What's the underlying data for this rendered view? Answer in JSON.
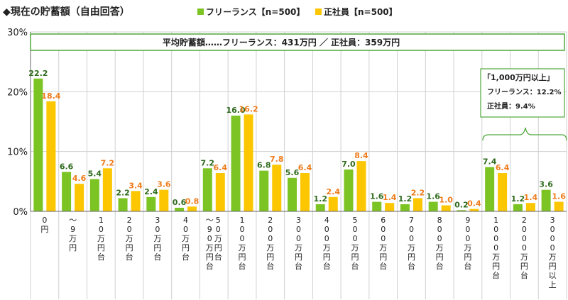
{
  "chart_data": {
    "type": "bar",
    "title": "◆現在の貯蓄額（自由回答）",
    "legend_position": "top",
    "series": [
      {
        "name": "フリーランス【n=500】",
        "color": "#7cc424",
        "label_color": "#2e6b1e",
        "values": [
          22.2,
          6.6,
          5.4,
          2.2,
          2.4,
          0.6,
          7.2,
          16.0,
          6.8,
          5.6,
          1.2,
          7.0,
          1.6,
          1.2,
          1.6,
          0.2,
          7.4,
          1.2,
          3.6
        ]
      },
      {
        "name": "正社員【n=500】",
        "color": "#fcc600",
        "label_color": "#ee7b1a",
        "values": [
          18.4,
          4.6,
          7.2,
          3.4,
          3.6,
          0.8,
          6.4,
          16.2,
          7.8,
          6.4,
          2.4,
          8.4,
          1.4,
          2.2,
          1.0,
          0.4,
          6.4,
          1.4,
          1.6
        ]
      }
    ],
    "categories": [
      [
        "0",
        "円"
      ],
      [
        "〜",
        "9",
        "万",
        "円"
      ],
      [
        "1",
        "0",
        "万",
        "円",
        "台"
      ],
      [
        "2",
        "0",
        "万",
        "円",
        "台"
      ],
      [
        "3",
        "0",
        "万",
        "円",
        "台"
      ],
      [
        "4",
        "0",
        "万",
        "円",
        "台"
      ],
      [
        "〜",
        "9",
        "0",
        "万",
        "円",
        "台",
        "5",
        "0",
        "万",
        "円",
        "台"
      ],
      [
        "1",
        "0",
        "0",
        "万",
        "円",
        "台"
      ],
      [
        "2",
        "0",
        "0",
        "万",
        "円",
        "台"
      ],
      [
        "3",
        "0",
        "0",
        "万",
        "円",
        "台"
      ],
      [
        "4",
        "0",
        "0",
        "万",
        "円",
        "台"
      ],
      [
        "5",
        "0",
        "0",
        "万",
        "円",
        "台"
      ],
      [
        "6",
        "0",
        "0",
        "万",
        "円",
        "台"
      ],
      [
        "7",
        "0",
        "0",
        "万",
        "円",
        "台"
      ],
      [
        "8",
        "0",
        "0",
        "万",
        "円",
        "台"
      ],
      [
        "9",
        "0",
        "0",
        "万",
        "円",
        "台"
      ],
      [
        "1",
        "0",
        "0",
        "0",
        "万",
        "円",
        "台"
      ],
      [
        "2",
        "0",
        "0",
        "0",
        "万",
        "円",
        "台"
      ],
      [
        "3",
        "0",
        "0",
        "0",
        "万",
        "円",
        "以",
        "上"
      ]
    ],
    "yticks": [
      "0%",
      "10%",
      "20%",
      "30%"
    ],
    "ylim": [
      0,
      30
    ],
    "grid": true,
    "annotations": {
      "average_box": "平均貯蓄額……フリーランス：431万円 ／ 正社員：359万円",
      "callout": [
        "「1,000万円以上」",
        "フリーランス：12.2%",
        "正社員：9.4%"
      ]
    }
  }
}
